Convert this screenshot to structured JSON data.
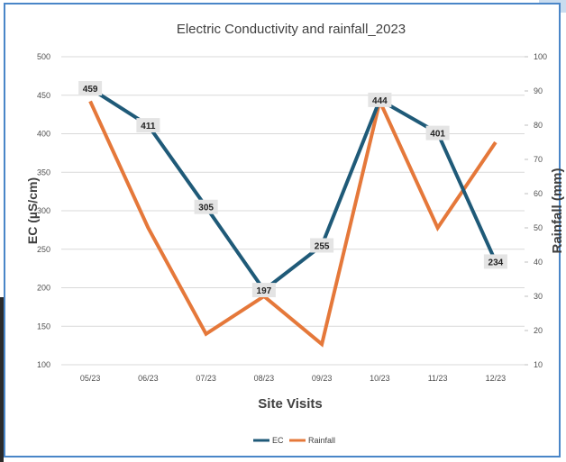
{
  "colors": {
    "ec": "#1f5a78",
    "rainfall": "#e5783a",
    "grid": "#d9d9d9",
    "label_bg": "#e4e4e4",
    "frame": "#4a86c8"
  },
  "chart_data": {
    "type": "line",
    "title": "Electric Conductivity and rainfall_2023",
    "xlabel": "Site Visits",
    "ylabel_left": "EC (µS/cm)",
    "ylabel_right": "Rainfall (mm)",
    "categories": [
      "05/23",
      "06/23",
      "07/23",
      "08/23",
      "09/23",
      "10/23",
      "11/23",
      "12/23"
    ],
    "y_left_ticks": [
      "100",
      "150",
      "200",
      "250",
      "300",
      "350",
      "400",
      "450",
      "500"
    ],
    "y_right_ticks": [
      "10",
      "20",
      "30",
      "40",
      "50",
      "60",
      "70",
      "80",
      "90",
      "100"
    ],
    "ylim_left": [
      100,
      500
    ],
    "ylim_right": [
      10,
      100
    ],
    "grid": true,
    "legend_position": "bottom",
    "series": [
      {
        "name": "EC",
        "axis": "left",
        "values": [
          459,
          411,
          305,
          197,
          255,
          444,
          401,
          234
        ],
        "data_labels": [
          "459",
          "411",
          "305",
          "197",
          "255",
          "444",
          "401",
          "234"
        ]
      },
      {
        "name": "Rainfall",
        "axis": "right",
        "values": [
          87,
          50,
          19,
          30,
          16,
          87,
          50,
          75
        ]
      }
    ]
  }
}
